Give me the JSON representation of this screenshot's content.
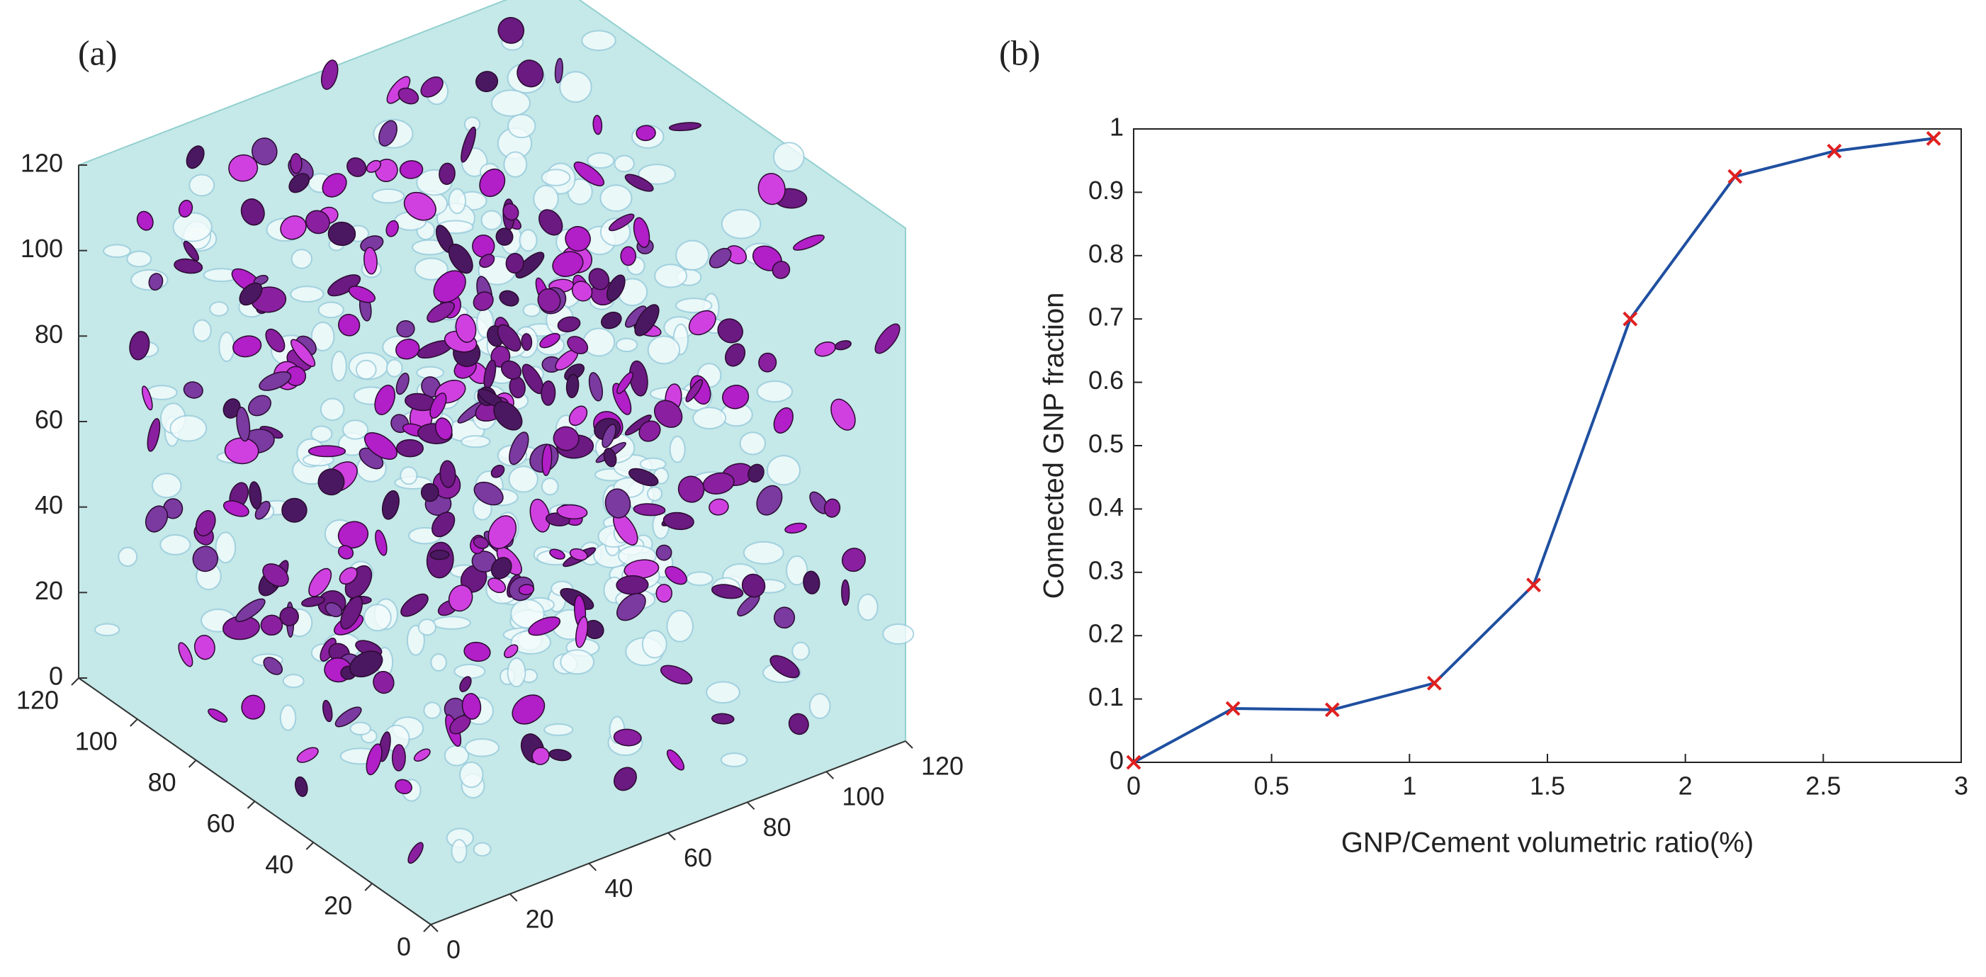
{
  "chart_data": [
    {
      "type": "volume",
      "label": "(a)",
      "xticks": [
        0,
        20,
        40,
        60,
        80,
        100,
        120
      ],
      "yticks": [
        0,
        20,
        40,
        60,
        80,
        100,
        120
      ],
      "zticks": [
        0,
        20,
        40,
        60,
        80,
        100,
        120
      ],
      "xlim": [
        0,
        120
      ],
      "ylim": [
        0,
        120
      ],
      "zlim": [
        0,
        120
      ]
    },
    {
      "type": "line",
      "label": "(b)",
      "xlabel": "GNP/Cement volumetric ratio(%)",
      "ylabel": "Connected GNP fraction",
      "x": [
        0,
        0.36,
        0.72,
        1.09,
        1.45,
        1.8,
        2.18,
        2.54,
        2.9
      ],
      "values": [
        0,
        0.085,
        0.083,
        0.125,
        0.28,
        0.7,
        0.925,
        0.965,
        0.985
      ],
      "color": "#1f4fa0",
      "marker_color": "#e02020",
      "xlim": [
        0,
        3
      ],
      "ylim": [
        0,
        1
      ],
      "xticks": [
        0,
        0.5,
        1,
        1.5,
        2,
        2.5,
        3
      ],
      "yticks": [
        0,
        0.1,
        0.2,
        0.3,
        0.4,
        0.5,
        0.6,
        0.7,
        0.8,
        0.9,
        1
      ]
    }
  ]
}
